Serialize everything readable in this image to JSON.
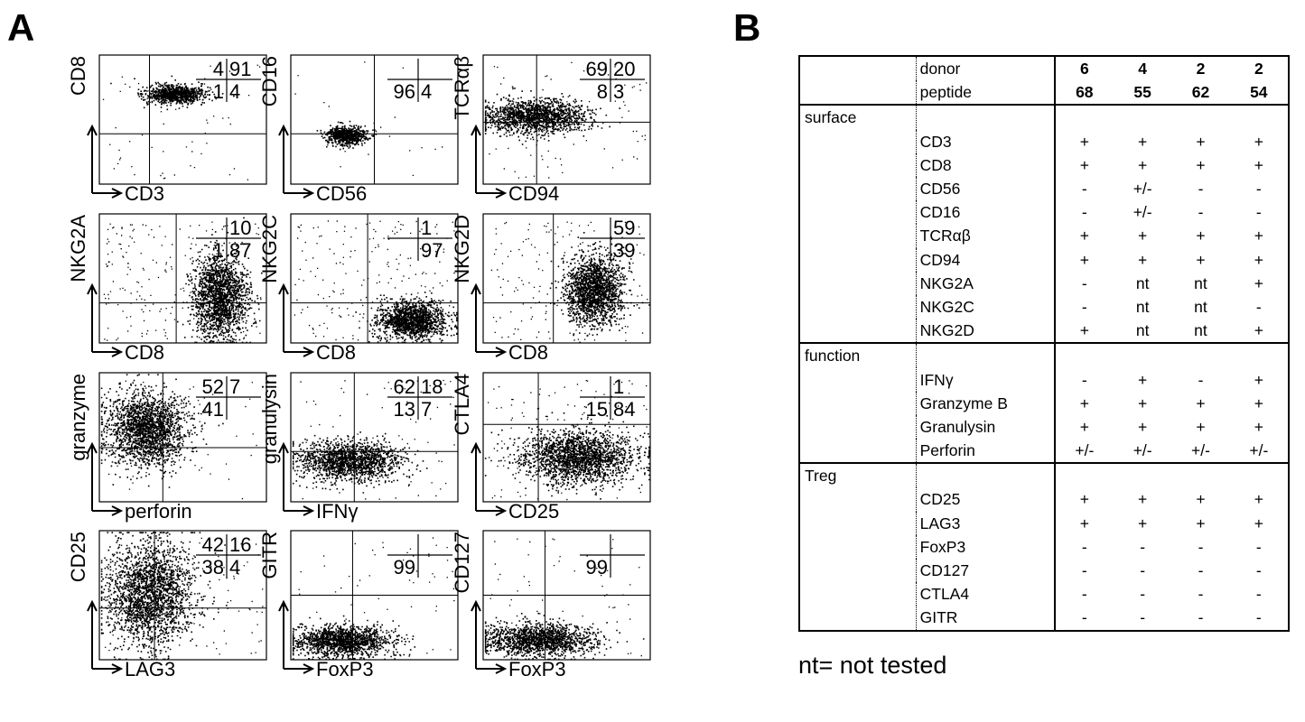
{
  "panel_a_label": "A",
  "panel_b_label": "B",
  "plots": [
    {
      "id": "cd8-cd3",
      "ylabel": "CD8",
      "xlabel": "CD3",
      "quads": {
        "ul": "4",
        "ur": "91",
        "ll": "1",
        "lr": "4"
      }
    },
    {
      "id": "cd16-cd56",
      "ylabel": "CD16",
      "xlabel": "CD56",
      "quads": {
        "ul": "",
        "ur": "",
        "ll": "96",
        "lr": "4"
      }
    },
    {
      "id": "tcrab-cd94",
      "ylabel": "TCRαβ",
      "xlabel": "CD94",
      "quads": {
        "ul": "69",
        "ur": "20",
        "ll": "8",
        "lr": "3"
      }
    },
    {
      "id": "nkg2a-cd8",
      "ylabel": "NKG2A",
      "xlabel": "CD8",
      "quads": {
        "ul": "",
        "ur": "10",
        "ll": "1",
        "lr": "87"
      }
    },
    {
      "id": "nkg2c-cd8",
      "ylabel": "NKG2C",
      "xlabel": "CD8",
      "quads": {
        "ul": "",
        "ur": "1",
        "ll": "",
        "lr": "97"
      }
    },
    {
      "id": "nkg2d-cd8",
      "ylabel": "NKG2D",
      "xlabel": "CD8",
      "quads": {
        "ul": "",
        "ur": "59",
        "ll": "",
        "lr": "39"
      }
    },
    {
      "id": "granzyme-perforin",
      "ylabel": "granzyme",
      "xlabel": "perforin",
      "quads": {
        "ul": "52",
        "ur": "7",
        "ll": "41",
        "lr": ""
      }
    },
    {
      "id": "granulysin-ifng",
      "ylabel": "granulysin",
      "xlabel": "IFNγ",
      "quads": {
        "ul": "62",
        "ur": "18",
        "ll": "13",
        "lr": "7"
      }
    },
    {
      "id": "ctla4-cd25",
      "ylabel": "CTLA4",
      "xlabel": "CD25",
      "quads": {
        "ul": "",
        "ur": "1",
        "ll": "15",
        "lr": "84"
      }
    },
    {
      "id": "cd25-lag3",
      "ylabel": "CD25",
      "xlabel": "LAG3",
      "quads": {
        "ul": "42",
        "ur": "16",
        "ll": "38",
        "lr": "4"
      }
    },
    {
      "id": "gitr-foxp3",
      "ylabel": "GITR",
      "xlabel": "FoxP3",
      "quads": {
        "ul": "",
        "ur": "",
        "ll": "99",
        "lr": ""
      }
    },
    {
      "id": "cd127-foxp3",
      "ylabel": "CD127",
      "xlabel": "FoxP3",
      "quads": {
        "ul": "",
        "ur": "",
        "ll": "99",
        "lr": ""
      }
    }
  ],
  "table": {
    "header": [
      {
        "label": "donor",
        "values": [
          "6",
          "4",
          "2",
          "2"
        ]
      },
      {
        "label": "peptide",
        "values": [
          "68",
          "55",
          "62",
          "54"
        ]
      }
    ],
    "sections": [
      {
        "name": "surface",
        "rows": [
          {
            "marker": "CD3",
            "values": [
              "+",
              "+",
              "+",
              "+"
            ]
          },
          {
            "marker": "CD8",
            "values": [
              "+",
              "+",
              "+",
              "+"
            ]
          },
          {
            "marker": "CD56",
            "values": [
              "-",
              "+/-",
              "-",
              "-"
            ]
          },
          {
            "marker": "CD16",
            "values": [
              "-",
              "+/-",
              "-",
              "-"
            ]
          },
          {
            "marker": "TCRαβ",
            "values": [
              "+",
              "+",
              "+",
              "+"
            ]
          },
          {
            "marker": "CD94",
            "values": [
              "+",
              "+",
              "+",
              "+"
            ]
          },
          {
            "marker": "NKG2A",
            "values": [
              "-",
              "nt",
              "nt",
              "+"
            ]
          },
          {
            "marker": "NKG2C",
            "values": [
              "-",
              "nt",
              "nt",
              "-"
            ]
          },
          {
            "marker": "NKG2D",
            "values": [
              "+",
              "nt",
              "nt",
              "+"
            ]
          }
        ]
      },
      {
        "name": "function",
        "rows": [
          {
            "marker": "IFNγ",
            "values": [
              "-",
              "+",
              "-",
              "+"
            ]
          },
          {
            "marker": "Granzyme B",
            "values": [
              "+",
              "+",
              "+",
              "+"
            ]
          },
          {
            "marker": "Granulysin",
            "values": [
              "+",
              "+",
              "+",
              "+"
            ]
          },
          {
            "marker": "Perforin",
            "values": [
              "+/-",
              "+/-",
              "+/-",
              "+/-"
            ]
          }
        ]
      },
      {
        "name": "Treg",
        "rows": [
          {
            "marker": "CD25",
            "values": [
              "+",
              "+",
              "+",
              "+"
            ]
          },
          {
            "marker": "LAG3",
            "values": [
              "+",
              "+",
              "+",
              "+"
            ]
          },
          {
            "marker": "FoxP3",
            "values": [
              "-",
              "-",
              "-",
              "-"
            ]
          },
          {
            "marker": "CD127",
            "values": [
              "-",
              "-",
              "-",
              "-"
            ]
          },
          {
            "marker": "CTLA4",
            "values": [
              "-",
              "-",
              "-",
              "-"
            ]
          },
          {
            "marker": "GITR",
            "values": [
              "-",
              "-",
              "-",
              "-"
            ]
          }
        ]
      }
    ]
  },
  "footnote": "nt= not tested"
}
